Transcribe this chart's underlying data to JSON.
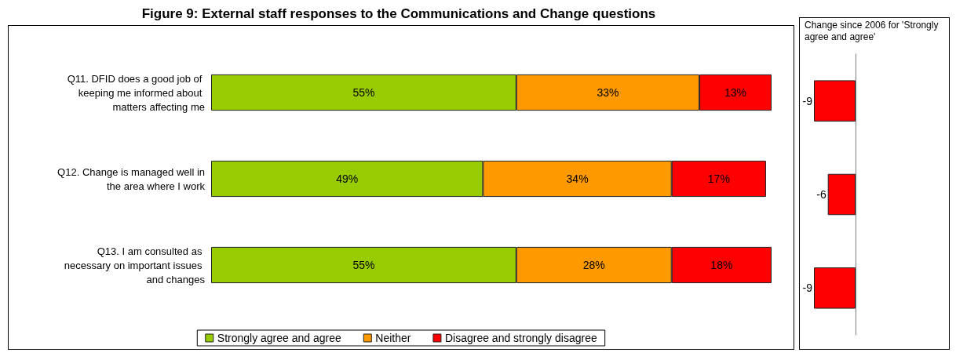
{
  "chart_data": [
    {
      "type": "bar",
      "title": "Figure 9: External staff responses to the Communications and Change questions",
      "orientation": "horizontal",
      "stacked": true,
      "tick_labels": "y",
      "legend": "bottom",
      "grid": false,
      "categories": [
        "Q11. DFID does a good job of keeping me informed about matters affecting me",
        "Q12. Change is managed well in the area where I work",
        "Q13. I am consulted as necessary on important issues and changes"
      ],
      "series": [
        {
          "name": "Strongly agree and agree",
          "color": "#99cc00",
          "values": [
            55,
            49,
            55
          ],
          "value_labels": [
            "55%",
            "49%",
            "55%"
          ]
        },
        {
          "name": "Neither",
          "color": "#ff9900",
          "values": [
            33,
            34,
            28
          ],
          "value_labels": [
            "33%",
            "34%",
            "28%"
          ]
        },
        {
          "name": "Disagree and strongly disagree",
          "color": "#ff0000",
          "values": [
            13,
            17,
            18
          ],
          "value_labels": [
            "13%",
            "17%",
            "18%"
          ]
        }
      ]
    },
    {
      "type": "bar",
      "title": "Change since 2006 for 'Strongly agree and agree'",
      "orientation": "horizontal",
      "tick_labels": false,
      "legend": false,
      "grid": false,
      "data_labels": true,
      "categories": [
        null,
        null,
        null
      ],
      "series": [
        {
          "color": "#ff0000",
          "values": [
            -9,
            -6,
            -9
          ]
        }
      ]
    }
  ]
}
